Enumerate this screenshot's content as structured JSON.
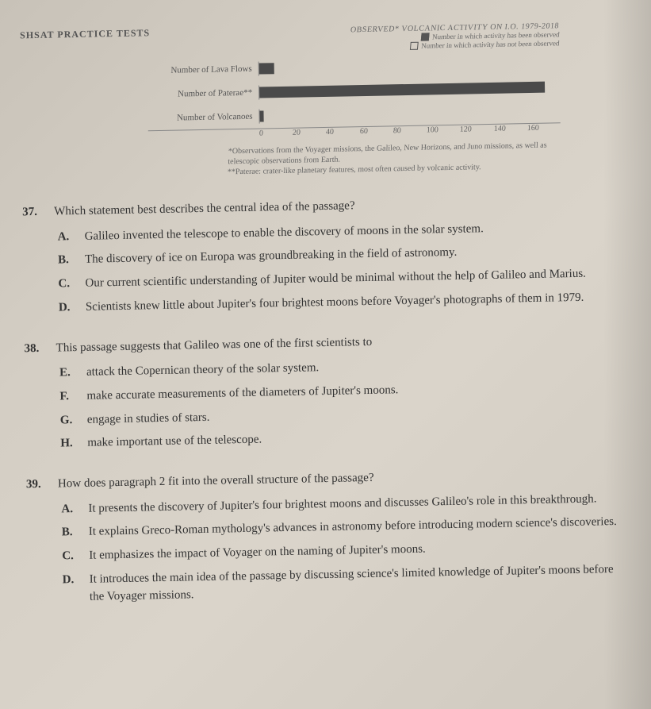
{
  "header": "SHSAT PRACTICE TESTS",
  "chart": {
    "type": "bar",
    "title": "OBSERVED* VOLCANIC ACTIVITY ON I.O. 1979-2018",
    "legend": [
      {
        "label": "Number in which activity has been observed",
        "filled": true
      },
      {
        "label": "Number in which activity has not been observed",
        "filled": false
      }
    ],
    "rows": [
      {
        "label": "Number of Lava Flows",
        "value": 8
      },
      {
        "label": "Number of Paterae**",
        "value": 152
      },
      {
        "label": "Number of Volcanoes",
        "value": 2
      }
    ],
    "axis": [
      "0",
      "20",
      "40",
      "60",
      "80",
      "100",
      "120",
      "140",
      "160"
    ],
    "xmax": 160,
    "bar_color": "#4a4a4a",
    "footnotes": [
      "*Observations from the Voyager missions, the Galileo, New Horizons, and Juno missions, as well as telescopic observations from Earth.",
      "**Paterae: crater-like planetary features, most often caused by volcanic activity."
    ]
  },
  "questions": [
    {
      "num": "37.",
      "stem": "Which statement best describes the central idea of the passage?",
      "choices": [
        {
          "letter": "A.",
          "text": "Galileo invented the telescope to enable the discovery of moons in the solar system."
        },
        {
          "letter": "B.",
          "text": "The discovery of ice on Europa was groundbreaking in the field of astronomy."
        },
        {
          "letter": "C.",
          "text": "Our current scientific understanding of Jupiter would be minimal without the help of Galileo and Marius."
        },
        {
          "letter": "D.",
          "text": "Scientists knew little about Jupiter's four brightest moons before Voyager's photographs of them in 1979."
        }
      ]
    },
    {
      "num": "38.",
      "stem": "This passage suggests that Galileo was one of the first scientists to",
      "choices": [
        {
          "letter": "E.",
          "text": "attack the Copernican theory of the solar system."
        },
        {
          "letter": "F.",
          "text": "make accurate measurements of the diameters of Jupiter's moons."
        },
        {
          "letter": "G.",
          "text": "engage in studies of stars."
        },
        {
          "letter": "H.",
          "text": "make important use of the telescope."
        }
      ]
    },
    {
      "num": "39.",
      "stem": "How does paragraph 2 fit into the overall structure of the passage?",
      "choices": [
        {
          "letter": "A.",
          "text": "It presents the discovery of Jupiter's four brightest moons and discusses Galileo's role in this breakthrough."
        },
        {
          "letter": "B.",
          "text": "It explains Greco-Roman mythology's advances in astronomy before introducing modern science's discoveries."
        },
        {
          "letter": "C.",
          "text": "It emphasizes the impact of Voyager on the naming of Jupiter's moons."
        },
        {
          "letter": "D.",
          "text": "It introduces the main idea of the passage by discussing science's limited knowledge of Jupiter's moons before the Voyager missions."
        }
      ]
    }
  ]
}
